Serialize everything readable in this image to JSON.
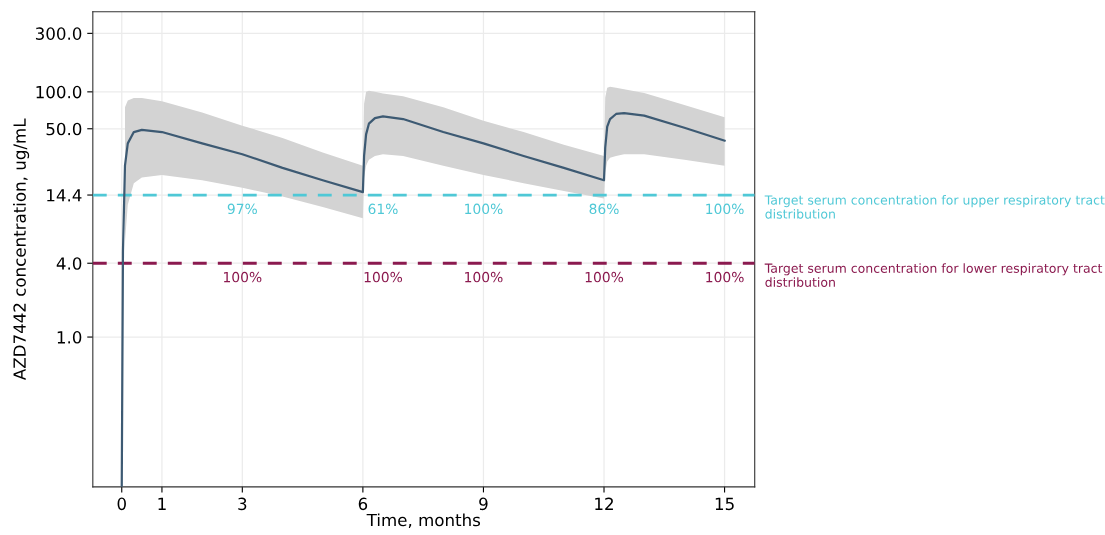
{
  "chart_data": {
    "type": "line",
    "xlabel": "Time, months",
    "ylabel": "AZD7442 concentration, ug/mL",
    "x": [
      0,
      0.03,
      0.08,
      0.15,
      0.3,
      0.5,
      1,
      2,
      3,
      4,
      5,
      6,
      6.03,
      6.08,
      6.15,
      6.3,
      6.5,
      7,
      8,
      9,
      10,
      11,
      12,
      12.03,
      12.08,
      12.15,
      12.3,
      12.5,
      13,
      14,
      15
    ],
    "series": [
      {
        "color": "#3d5a73",
        "values": [
          0.06,
          5,
          25,
          38,
          47,
          49,
          47,
          38,
          31,
          24,
          19,
          15.2,
          30,
          45,
          55,
          61,
          63,
          60,
          47,
          38,
          30,
          24,
          19,
          35,
          52,
          60,
          66,
          67,
          64,
          51,
          40
        ],
        "upper": [
          null,
          null,
          75,
          85,
          89,
          89,
          84,
          68,
          53,
          42,
          32,
          25,
          80,
          100,
          102,
          100,
          97,
          92,
          75,
          58,
          47,
          37,
          30,
          90,
          108,
          110,
          108,
          105,
          98,
          78,
          62
        ],
        "lower": [
          null,
          null,
          6,
          12,
          18,
          20,
          21,
          19,
          16.5,
          14,
          11.5,
          9.3,
          20,
          25,
          28,
          30,
          31,
          30,
          25,
          21,
          18,
          15.5,
          13.5,
          22,
          27,
          29,
          30,
          31,
          31,
          28,
          25
        ]
      }
    ],
    "log": "y",
    "xlim": [
      -0.72,
      15.75
    ],
    "xticks": [
      0,
      1,
      3,
      6,
      9,
      12,
      15
    ],
    "ylim": [
      0.06,
      450
    ],
    "yticks": [
      {
        "value": 1,
        "label": "1.0"
      },
      {
        "value": 4,
        "label": "4.0"
      },
      14.4,
      {
        "value": 50,
        "label": "50.0"
      },
      {
        "value": 100,
        "label": "100.0"
      },
      {
        "value": 300,
        "label": "300.0"
      }
    ],
    "grid": true,
    "line_style": "solid",
    "ref_lines": [
      {
        "axis": "y",
        "value": 14.4,
        "label": "Target serum concentration for upper respiratory tract distribution",
        "color": "#4fc8d6",
        "line_style": "dashed"
      },
      {
        "axis": "y",
        "value": 4,
        "label": "Target serum concentration for lower respiratory tract distribution",
        "color": "#8b1a4f",
        "line_style": "dashed"
      }
    ],
    "annotations": [
      {
        "text": "97%",
        "x": 3,
        "y": 14.4
      },
      {
        "text": "61%",
        "x": 6.5,
        "y": 14.4
      },
      {
        "text": "100%",
        "x": 9,
        "y": 14.4
      },
      {
        "text": "86%",
        "x": 12,
        "y": 14.4
      },
      {
        "text": "100%",
        "x": 15,
        "y": 14.4
      },
      {
        "text": "100%",
        "x": 3,
        "y": 4
      },
      {
        "text": "100%",
        "x": 6.5,
        "y": 4
      },
      {
        "text": "100%",
        "x": 9,
        "y": 4
      },
      {
        "text": "100%",
        "x": 12,
        "y": 4
      },
      {
        "text": "100%",
        "x": 15,
        "y": 4
      }
    ]
  }
}
